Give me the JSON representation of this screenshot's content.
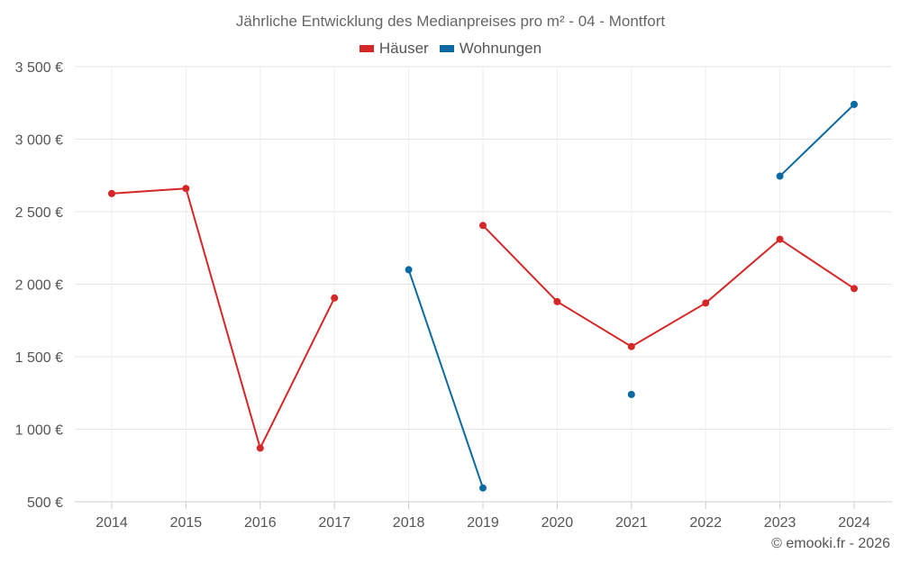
{
  "title": "Jährliche Entwicklung des Medianpreises pro m² - 04 - Montfort",
  "credit": "© emooki.fr - 2026",
  "legend": [
    {
      "name": "Häuser",
      "color": "#d62728"
    },
    {
      "name": "Wohnungen",
      "color": "#0b6aa2"
    }
  ],
  "chart_data": {
    "type": "line",
    "title": "Jährliche Entwicklung des Medianpreises pro m² - 04 - Montfort",
    "x": [
      2014,
      2015,
      2016,
      2017,
      2018,
      2019,
      2020,
      2021,
      2022,
      2023,
      2024
    ],
    "xtick_labels": [
      "2014",
      "2015",
      "2016",
      "2017",
      "2018",
      "2019",
      "2020",
      "2021",
      "2022",
      "2023",
      "2024"
    ],
    "ytick_values": [
      500,
      1000,
      1500,
      2000,
      2500,
      3000,
      3500
    ],
    "ytick_labels": [
      "500 €",
      "1 000 €",
      "1 500 €",
      "2 000 €",
      "2 500 €",
      "3 000 €",
      "3 500 €"
    ],
    "ylim": [
      500,
      3500
    ],
    "grid": true,
    "legend_position": "top-center",
    "series": [
      {
        "name": "Häuser",
        "color": "#d62728",
        "values": [
          2625,
          2660,
          870,
          1905,
          null,
          2405,
          1880,
          1570,
          1870,
          2310,
          1970
        ]
      },
      {
        "name": "Wohnungen",
        "color": "#0b6aa2",
        "values": [
          null,
          null,
          null,
          null,
          2100,
          595,
          null,
          1240,
          null,
          2745,
          3240
        ]
      }
    ]
  }
}
